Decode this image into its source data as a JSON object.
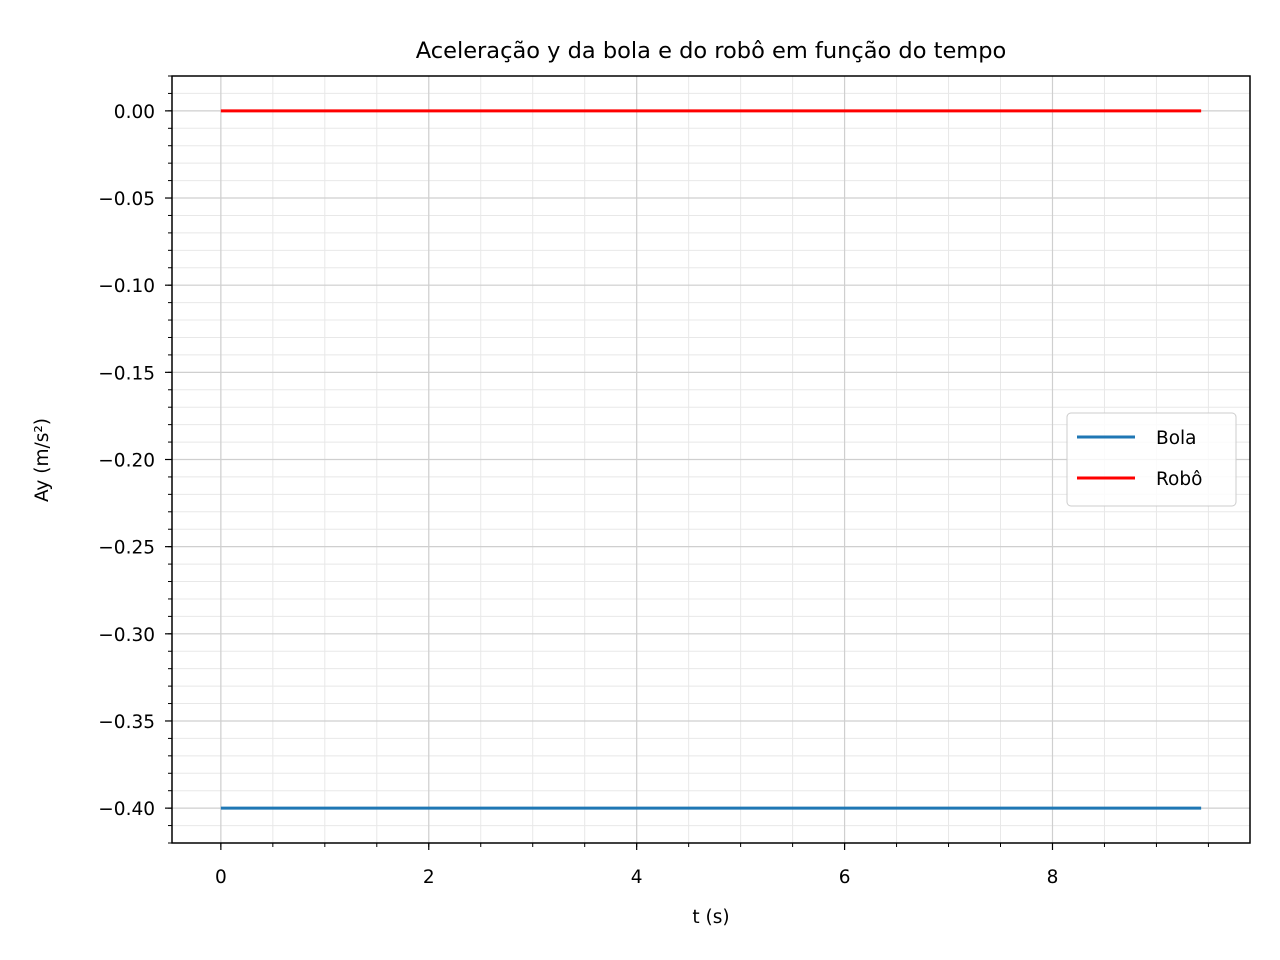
{
  "chart_data": {
    "type": "line",
    "title": "Aceleração y da bola e do robô em função do tempo",
    "xlabel": "t (s)",
    "ylabel": "Ay (m/s²)",
    "xlim": [
      -0.47,
      9.9
    ],
    "ylim": [
      -0.42,
      0.02
    ],
    "x_ticks": [
      0,
      2,
      4,
      6,
      8
    ],
    "x_tick_labels": [
      "0",
      "2",
      "4",
      "6",
      "8"
    ],
    "y_ticks": [
      0.0,
      -0.05,
      -0.1,
      -0.15,
      -0.2,
      -0.25,
      -0.3,
      -0.35,
      -0.4
    ],
    "y_tick_labels": [
      "0.00",
      "−0.05",
      "−0.10",
      "−0.15",
      "−0.20",
      "−0.25",
      "−0.30",
      "−0.35",
      "−0.40"
    ],
    "x_minor_step": 0.5,
    "y_minor_step": 0.01,
    "grid": true,
    "minor_grid": true,
    "legend_position": "center-right",
    "series": [
      {
        "name": "Bola",
        "color": "#1f77b4",
        "x": [
          0,
          9.43
        ],
        "y": [
          -0.4,
          -0.4
        ]
      },
      {
        "name": "Robô",
        "color": "#ff0000",
        "x": [
          0,
          9.43
        ],
        "y": [
          0.0,
          0.0
        ]
      }
    ]
  }
}
